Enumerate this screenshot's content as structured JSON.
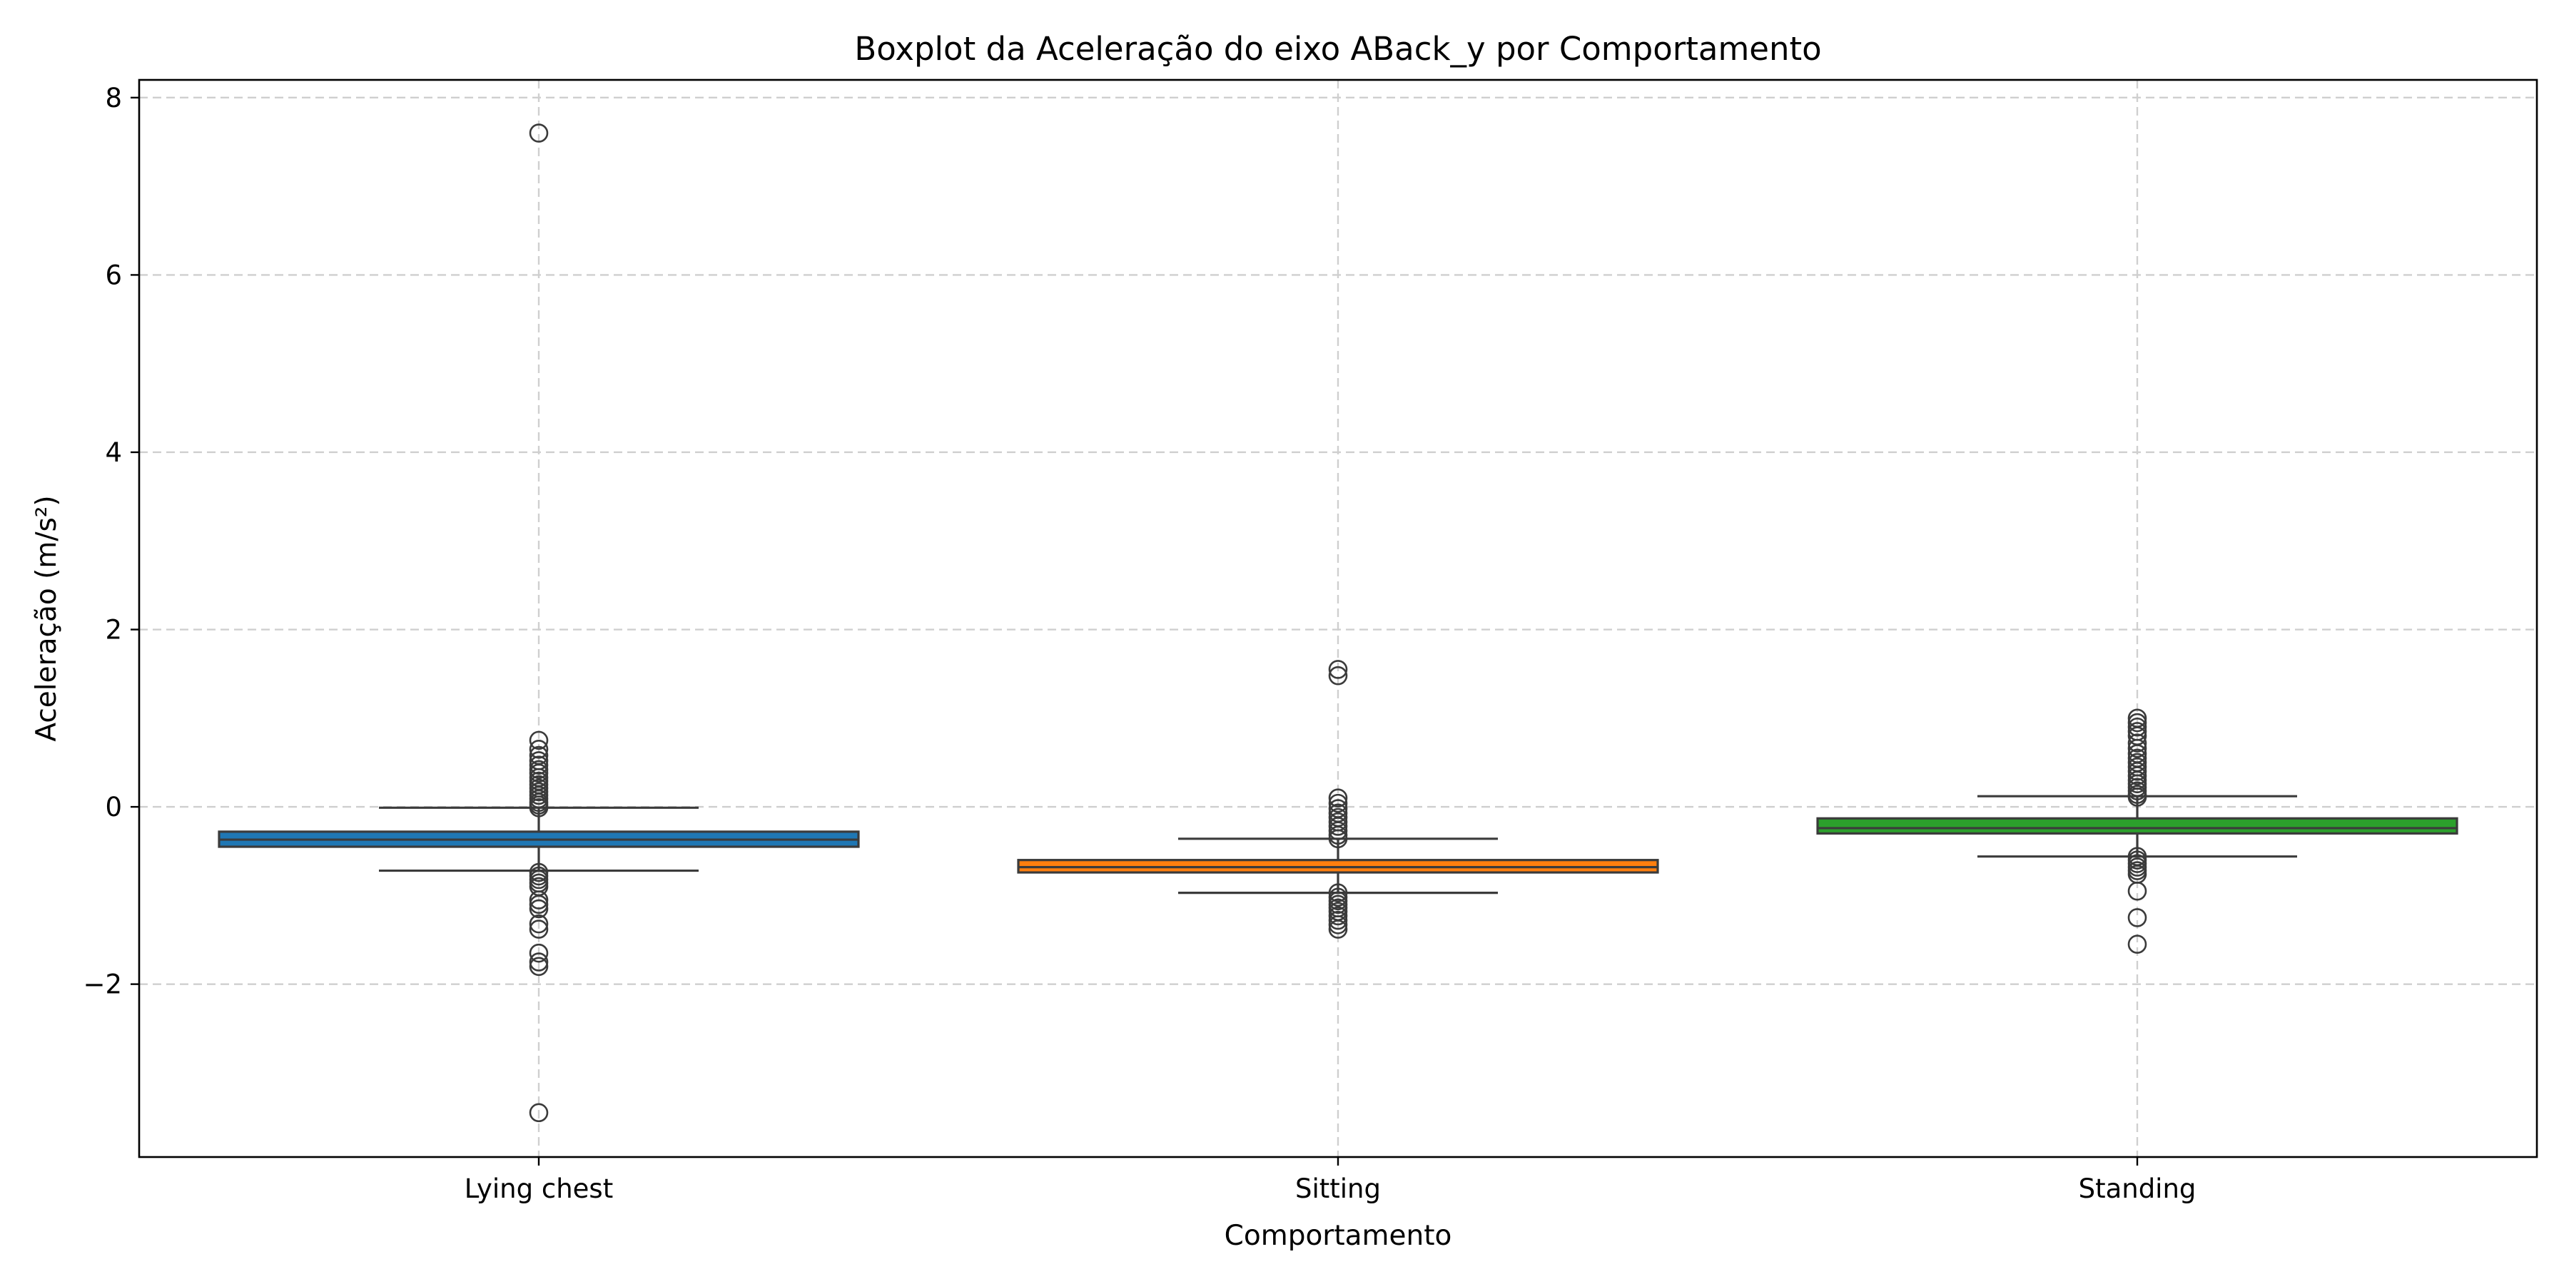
{
  "chart_data": {
    "type": "boxplot",
    "title": "Boxplot da Aceleração do eixo ABack_y por Comportamento",
    "xlabel": "Comportamento",
    "ylabel": "Aceleração (m/s²)",
    "ylim": [
      -3.95,
      8.2
    ],
    "yticks": [
      -2,
      0,
      2,
      4,
      6,
      8
    ],
    "ytick_labels": [
      "−2",
      "0",
      "2",
      "4",
      "6",
      "8"
    ],
    "grid": true,
    "categories": [
      "Lying chest",
      "Sitting",
      "Standing"
    ],
    "series": [
      {
        "name": "Lying chest",
        "color": "#1f77b4",
        "whisker_low": -0.72,
        "q1": -0.45,
        "median": -0.37,
        "q3": -0.28,
        "whisker_high": -0.01,
        "outliers": [
          7.6,
          0.75,
          0.65,
          0.58,
          0.52,
          0.47,
          0.42,
          0.38,
          0.33,
          0.29,
          0.25,
          0.21,
          0.17,
          0.13,
          0.09,
          0.05,
          0.02,
          -0.01,
          -0.74,
          -0.78,
          -0.82,
          -0.86,
          -0.9,
          -1.05,
          -1.1,
          -1.15,
          -1.32,
          -1.38,
          -1.65,
          -1.75,
          -1.8,
          -3.45
        ]
      },
      {
        "name": "Sitting",
        "color": "#ff7f0e",
        "whisker_low": -0.97,
        "q1": -0.74,
        "median": -0.68,
        "q3": -0.6,
        "whisker_high": -0.36,
        "outliers": [
          1.55,
          1.48,
          0.1,
          0.04,
          -0.02,
          -0.07,
          -0.12,
          -0.17,
          -0.22,
          -0.27,
          -0.32,
          -0.36,
          -0.97,
          -1.02,
          -1.06,
          -1.1,
          -1.14,
          -1.18,
          -1.23,
          -1.28,
          -1.33,
          -1.38
        ]
      },
      {
        "name": "Standing",
        "color": "#2ca02c",
        "whisker_low": -0.56,
        "q1": -0.3,
        "median": -0.24,
        "q3": -0.13,
        "whisker_high": 0.12,
        "outliers": [
          1.0,
          0.95,
          0.9,
          0.85,
          0.8,
          0.72,
          0.66,
          0.6,
          0.55,
          0.5,
          0.45,
          0.4,
          0.35,
          0.3,
          0.26,
          0.22,
          0.18,
          0.14,
          0.11,
          -0.56,
          -0.6,
          -0.64,
          -0.68,
          -0.72,
          -0.76,
          -0.95,
          -1.25,
          -1.55
        ]
      }
    ]
  }
}
